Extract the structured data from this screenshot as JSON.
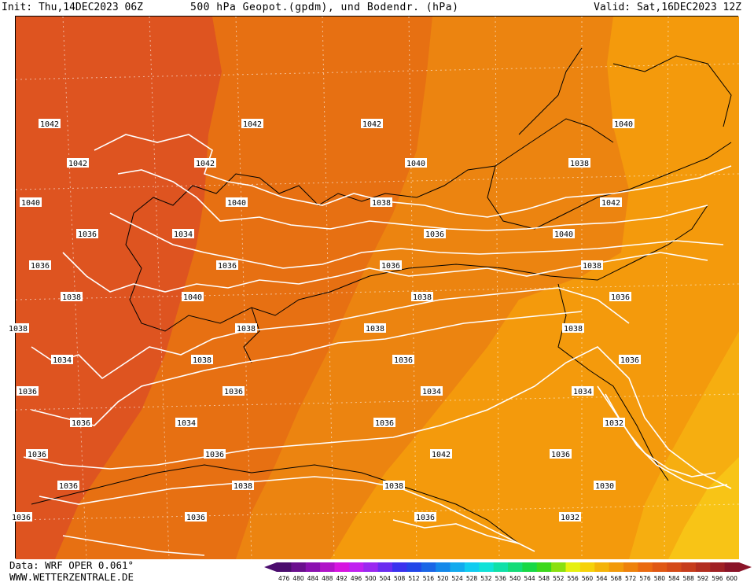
{
  "header": {
    "init": "Init: Thu,14DEC2023 06Z",
    "title": "500 hPa Geopot.(gpdm), und Bodendr. (hPa)",
    "valid": "Valid: Sat,16DEC2023 12Z"
  },
  "footer": {
    "data_source": "Data: WRF OPER 0.061°",
    "url": "WWW.WETTERZENTRALE.DE"
  },
  "legend": {
    "values": [
      "476",
      "480",
      "484",
      "488",
      "492",
      "496",
      "500",
      "504",
      "508",
      "512",
      "516",
      "520",
      "524",
      "528",
      "532",
      "536",
      "540",
      "544",
      "548",
      "552",
      "556",
      "560",
      "564",
      "568",
      "572",
      "576",
      "580",
      "584",
      "588",
      "592",
      "596",
      "600"
    ],
    "colors": [
      "#4b0d6e",
      "#6a0f8e",
      "#8a10b0",
      "#b012c8",
      "#d614e0",
      "#c020f0",
      "#9a28f0",
      "#6a2cf0",
      "#3a32ee",
      "#2246e8",
      "#1a66e6",
      "#1488ea",
      "#12aaee",
      "#10ccf0",
      "#10e2d8",
      "#10e0a8",
      "#14dc78",
      "#18d846",
      "#3cd81c",
      "#8ae010",
      "#e6f010",
      "#f6d20a",
      "#f4b40a",
      "#f29a0a",
      "#ee820c",
      "#ea6a10",
      "#e05814",
      "#d44a18",
      "#c63c1c",
      "#b22e20",
      "#a02024",
      "#8a1428"
    ]
  },
  "isobar_labels": [
    {
      "text": "1042",
      "col": 0,
      "row": 0
    },
    {
      "text": "1042",
      "col": 0,
      "row": 1
    },
    {
      "text": "1040",
      "col": 0,
      "row": 2
    },
    {
      "text": "1036",
      "col": 0,
      "row": 3
    },
    {
      "text": "1036",
      "col": 0,
      "row": 4
    },
    {
      "text": "1038",
      "col": 0,
      "row": 5
    },
    {
      "text": "1038",
      "col": 0,
      "row": 6
    },
    {
      "text": "1034",
      "col": 0,
      "row": 7
    },
    {
      "text": "1036",
      "col": 0,
      "row": 8
    },
    {
      "text": "1036",
      "col": 0,
      "row": 9
    },
    {
      "text": "1036",
      "col": 0,
      "row": 10
    },
    {
      "text": "1036",
      "col": 0,
      "row": 11
    },
    {
      "text": "1036",
      "col": 0,
      "row": 12
    },
    {
      "text": "1042",
      "col": 1,
      "row": 0
    },
    {
      "text": "1042",
      "col": 1,
      "row": 1
    },
    {
      "text": "1040",
      "col": 1,
      "row": 2
    },
    {
      "text": "1034",
      "col": 1,
      "row": 3
    },
    {
      "text": "1036",
      "col": 1,
      "row": 4
    },
    {
      "text": "1040",
      "col": 1,
      "row": 5
    },
    {
      "text": "1038",
      "col": 1,
      "row": 6
    },
    {
      "text": "1038",
      "col": 1,
      "row": 7
    },
    {
      "text": "1036",
      "col": 1,
      "row": 8
    },
    {
      "text": "1034",
      "col": 1,
      "row": 9
    },
    {
      "text": "1036",
      "col": 1,
      "row": 10
    },
    {
      "text": "1038",
      "col": 1,
      "row": 11
    },
    {
      "text": "1036",
      "col": 1,
      "row": 12
    },
    {
      "text": "1042",
      "col": 2,
      "row": 0
    },
    {
      "text": "1040",
      "col": 2,
      "row": 1
    },
    {
      "text": "1038",
      "col": 2,
      "row": 2
    },
    {
      "text": "1036",
      "col": 2,
      "row": 3
    },
    {
      "text": "1036",
      "col": 2,
      "row": 4
    },
    {
      "text": "1038",
      "col": 2,
      "row": 5
    },
    {
      "text": "1038",
      "col": 2,
      "row": 6
    },
    {
      "text": "1036",
      "col": 2,
      "row": 7
    },
    {
      "text": "1034",
      "col": 2,
      "row": 8
    },
    {
      "text": "1036",
      "col": 2,
      "row": 9
    },
    {
      "text": "1042",
      "col": 2,
      "row": 10
    },
    {
      "text": "1038",
      "col": 2,
      "row": 11
    },
    {
      "text": "1036",
      "col": 2,
      "row": 12
    },
    {
      "text": "1040",
      "col": 3,
      "row": 0
    },
    {
      "text": "1038",
      "col": 3,
      "row": 1
    },
    {
      "text": "1042",
      "col": 3,
      "row": 2
    },
    {
      "text": "1040",
      "col": 3,
      "row": 3
    },
    {
      "text": "1038",
      "col": 3,
      "row": 4
    },
    {
      "text": "1036",
      "col": 3,
      "row": 5
    },
    {
      "text": "1038",
      "col": 3,
      "row": 6
    },
    {
      "text": "1036",
      "col": 3,
      "row": 7
    },
    {
      "text": "1034",
      "col": 3,
      "row": 8
    },
    {
      "text": "1032",
      "col": 3,
      "row": 9
    },
    {
      "text": "1036",
      "col": 3,
      "row": 10
    },
    {
      "text": "1030",
      "col": 3,
      "row": 11
    },
    {
      "text": "1032",
      "col": 3,
      "row": 12
    }
  ]
}
